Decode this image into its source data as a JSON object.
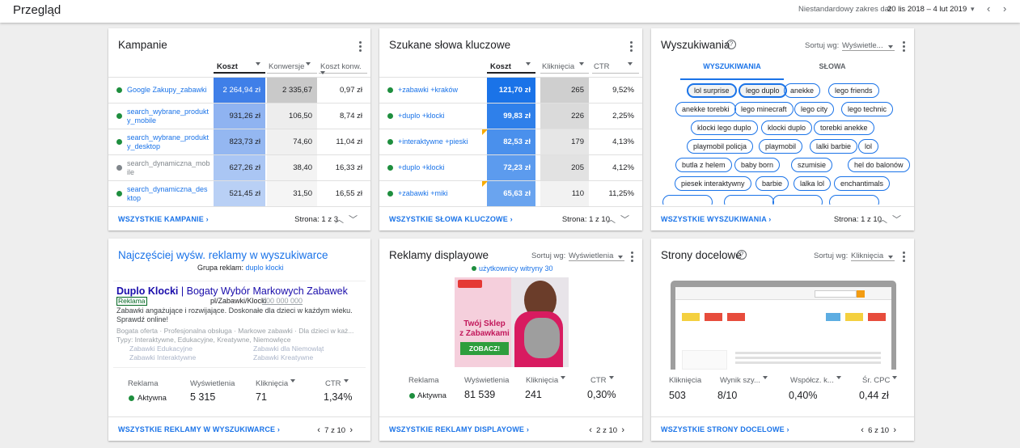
{
  "topbar": {
    "title": "Przegląd",
    "date_label": "Niestandardowy zakres dat",
    "date_value": "20 lis 2018 – 4 lut 2019"
  },
  "campaigns": {
    "title": "Kampanie",
    "columns": [
      "Koszt",
      "Konwersje",
      "Koszt konw."
    ],
    "rows": [
      {
        "name": "Google Zakupy_zabawki",
        "status": "active",
        "cost": "2 264,94 zł",
        "conv": "2 335,67",
        "cpc": "0,97 zł"
      },
      {
        "name": "search_wybrane_produkty_mobile",
        "status": "active",
        "cost": "931,26 zł",
        "conv": "106,50",
        "cpc": "8,74 zł"
      },
      {
        "name": "search_wybrane_produkty_desktop",
        "status": "active",
        "cost": "823,73 zł",
        "conv": "74,60",
        "cpc": "11,04 zł"
      },
      {
        "name": "search_dynamiczna_mobile",
        "status": "paused",
        "cost": "627,26 zł",
        "conv": "38,40",
        "cpc": "16,33 zł"
      },
      {
        "name": "search_dynamiczna_desktop",
        "status": "active",
        "cost": "521,45 zł",
        "conv": "31,50",
        "cpc": "16,55 zł"
      }
    ],
    "footer_link": "WSZYSTKIE KAMPANIE",
    "page": "Strona: 1 z 3"
  },
  "keywords": {
    "title": "Szukane słowa kluczowe",
    "columns": [
      "Koszt",
      "Kliknięcia",
      "CTR"
    ],
    "rows": [
      {
        "name": "+zabawki +kraków",
        "cost": "121,70 zł",
        "clicks": "265",
        "ctr": "9,52%",
        "flag": false
      },
      {
        "name": "+duplo +klocki",
        "cost": "99,83 zł",
        "clicks": "226",
        "ctr": "2,25%",
        "flag": false
      },
      {
        "name": "+interaktywne +pieski",
        "cost": "82,53 zł",
        "clicks": "179",
        "ctr": "4,13%",
        "flag": true
      },
      {
        "name": "+duplo +klocki",
        "cost": "72,23 zł",
        "clicks": "205",
        "ctr": "4,12%",
        "flag": false
      },
      {
        "name": "+zabawki +miki",
        "cost": "65,63 zł",
        "clicks": "110",
        "ctr": "11,25%",
        "flag": true
      }
    ],
    "footer_link": "WSZYSTKIE SŁOWA KLUCZOWE",
    "page": "Strona: 1 z 10"
  },
  "searches": {
    "title": "Wyszukiwania",
    "sort_label": "Sortuj wg:",
    "sort_value": "Wyświetle...",
    "tabs": [
      "WYSZUKIWANIA",
      "SŁOWA"
    ],
    "chips": [
      "lol surprise",
      "lego duplo",
      "anekke",
      "lego friends",
      "anekke torebki",
      "lego minecraft",
      "lego city",
      "lego technic",
      "klocki lego duplo",
      "klocki duplo",
      "torebki anekke",
      "playmobil policja",
      "playmobil",
      "lalki barbie",
      "lol",
      "butla z helem",
      "baby born",
      "szumisie",
      "hel do balonów",
      "piesek interaktywny",
      "barbie",
      "lalka lol",
      "enchantimals"
    ],
    "footer_link": "WSZYSTKIE WYSZUKIWANIA",
    "page": "Strona: 1 z 10"
  },
  "search_ads": {
    "title": "Najczęściej wyśw. reklamy w wyszukiwarce",
    "group_label": "Grupa reklam:",
    "group_value": "duplo klocki",
    "ad_headline_a": "Duplo Klocki",
    "ad_headline_sep": " | ",
    "ad_headline_b": "Bogaty Wybór Markowych Zabawek",
    "ad_badge": "Reklama",
    "ad_url": "pl/Zabawki/Klocki",
    "ad_phone": "000 000 000",
    "ad_desc": "Zabawki angażujące i rozwijające. Doskonałe dla dzieci w każdym wieku. Sprawdź online!",
    "ad_callouts": "Bogata oferta · Profesjonalna obsługa · Markowe zabawki · Dla dzieci w każ...",
    "ad_snippet": "Typy: Interaktywne, Edukacyjne, Kreatywne, Niemowlęce",
    "sitelinks": [
      "Zabawki Edukacyjne",
      "Zabawki dla Niemowląt",
      "Zabawki Interaktywne",
      "Zabawki Kreatywne"
    ],
    "metrics": {
      "ad_label": "Reklama",
      "status": "Aktywna",
      "impr_label": "Wyświetlenia",
      "impr": "5 315",
      "clicks_label": "Kliknięcia",
      "clicks": "71",
      "ctr_label": "CTR",
      "ctr": "1,34%"
    },
    "footer_link": "WSZYSTKIE REKLAMY W WYSZUKIWARCE",
    "page": "7 z 10"
  },
  "display_ads": {
    "title": "Reklamy displayowe",
    "sort_label": "Sortuj wg:",
    "sort_value": "Wyświetlenia",
    "audience": "użytkownicy witryny 30",
    "banner_line1": "Twój Sklep",
    "banner_line2": "z Zabawkami",
    "banner_cta": "ZOBACZ!",
    "metrics": {
      "ad_label": "Reklama",
      "status": "Aktywna",
      "impr_label": "Wyświetlenia",
      "impr": "81 539",
      "clicks_label": "Kliknięcia",
      "clicks": "241",
      "ctr_label": "CTR",
      "ctr": "0,30%"
    },
    "footer_link": "WSZYSTKIE REKLAMY DISPLAYOWE",
    "page": "2 z 10"
  },
  "landing": {
    "title": "Strony docelowe",
    "sort_label": "Sortuj wg:",
    "sort_value": "Kliknięcia",
    "metrics": {
      "clicks_label": "Kliknięcia",
      "clicks": "503",
      "qs_label": "Wynik szy...",
      "qs": "8/10",
      "conv_label": "Współcz. k...",
      "conv": "0,40%",
      "cpc_label": "Śr. CPC",
      "cpc": "0,44 zł"
    },
    "footer_link": "WSZYSTKIE STRONY DOCELOWE",
    "page": "6 z 10"
  },
  "colors": {
    "accent": "#1a73e8",
    "green": "#1e8e3e"
  }
}
